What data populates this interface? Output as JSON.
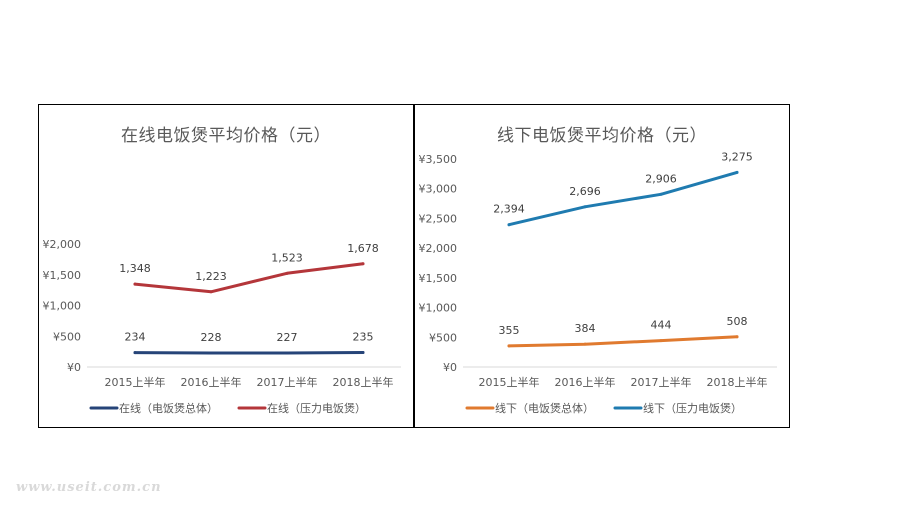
{
  "chart_data": [
    {
      "type": "line",
      "title": "在线电饭煲平均价格（元）",
      "categories": [
        "2015上半年",
        "2016上半年",
        "2017上半年",
        "2018上半年"
      ],
      "y_ticks": [
        "¥0",
        "¥500",
        "¥1,000",
        "¥1,500",
        "¥2,000"
      ],
      "ylim": [
        0,
        2000
      ],
      "grid": false,
      "legend_position": "bottom",
      "series": [
        {
          "name": "在线（电饭煲总体）",
          "color": "#264478",
          "values": [
            234,
            228,
            227,
            235
          ],
          "labels": [
            "234",
            "228",
            "227",
            "235"
          ]
        },
        {
          "name": "在线（压力电饭煲）",
          "color": "#b4363a",
          "values": [
            1348,
            1223,
            1523,
            1678
          ],
          "labels": [
            "1,348",
            "1,223",
            "1,523",
            "1,678"
          ]
        }
      ]
    },
    {
      "type": "line",
      "title": "线下电饭煲平均价格（元）",
      "categories": [
        "2015上半年",
        "2016上半年",
        "2017上半年",
        "2018上半年"
      ],
      "y_ticks": [
        "¥0",
        "¥500",
        "¥1,000",
        "¥1,500",
        "¥2,000",
        "¥2,500",
        "¥3,000",
        "¥3,500"
      ],
      "ylim": [
        0,
        3500
      ],
      "grid": false,
      "legend_position": "bottom",
      "series": [
        {
          "name": "线下（电饭煲总体）",
          "color": "#e07a2f",
          "values": [
            355,
            384,
            444,
            508
          ],
          "labels": [
            "355",
            "384",
            "444",
            "508"
          ]
        },
        {
          "name": "线下（压力电饭煲）",
          "color": "#1f7bb0",
          "values": [
            2394,
            2696,
            2906,
            3275
          ],
          "labels": [
            "2,394",
            "2,696",
            "2,906",
            "3,275"
          ]
        }
      ]
    }
  ],
  "watermark": "www.useit.com.cn"
}
